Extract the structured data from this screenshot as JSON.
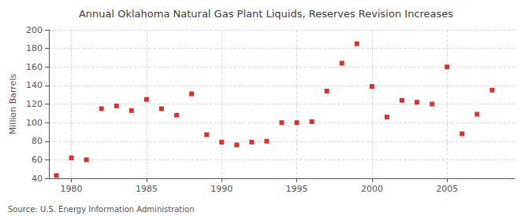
{
  "chart_data": {
    "type": "scatter",
    "title": "Annual Oklahoma Natural Gas Plant Liquids, Reserves Revision Increases",
    "ylabel": "Million Barrels",
    "annotations": [
      "Source: U.S. Energy Information Administration"
    ],
    "x": [
      1979,
      1980,
      1981,
      1982,
      1983,
      1984,
      1985,
      1986,
      1987,
      1988,
      1989,
      1990,
      1991,
      1992,
      1993,
      1994,
      1995,
      1996,
      1997,
      1998,
      1999,
      2000,
      2001,
      2002,
      2003,
      2004,
      2005,
      2006,
      2007,
      2008
    ],
    "values": [
      43,
      62,
      60,
      115,
      118,
      113,
      125,
      115,
      108,
      131,
      87,
      79,
      76,
      79,
      80,
      100,
      100,
      101,
      134,
      164,
      185,
      139,
      106,
      124,
      122,
      120,
      160,
      88,
      109,
      135
    ],
    "xlim": [
      1978.5,
      2009.5
    ],
    "xticks": [
      1980,
      1985,
      1990,
      1995,
      2000,
      2005
    ],
    "ylim": [
      40,
      200
    ],
    "yticks": [
      40,
      60,
      80,
      100,
      120,
      140,
      160,
      180,
      200
    ],
    "color": "#cc0000",
    "marker": "square",
    "grid": true
  }
}
